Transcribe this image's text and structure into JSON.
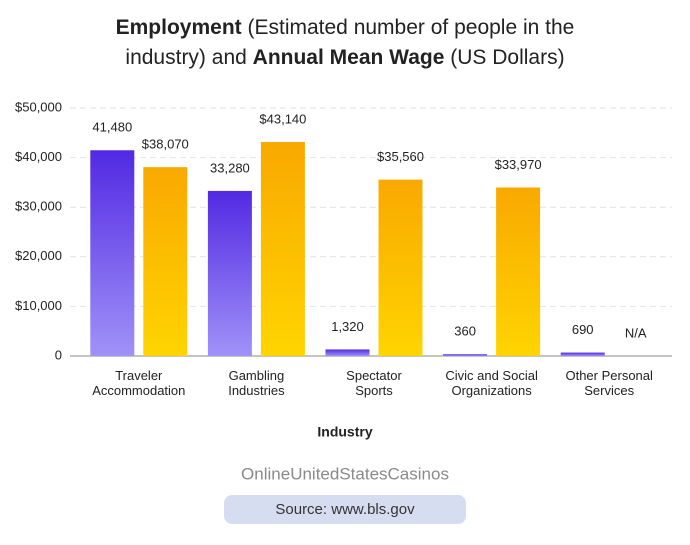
{
  "chart_data": {
    "type": "bar",
    "title": [
      {
        "text": "Employment",
        "bold": true
      },
      {
        "text": "(Estimated number of people in the",
        "bold": false
      },
      {
        "text": "industry) and",
        "bold": false
      },
      {
        "text": "Annual Mean Wage",
        "bold": true
      },
      {
        "text": "(US Dollars)",
        "bold": false
      }
    ],
    "title_lines": [
      [
        0,
        1
      ],
      [
        2,
        3,
        4
      ]
    ],
    "xlabel": "Industry",
    "categories": [
      [
        "Traveler",
        "Accommodation"
      ],
      [
        "Gambling",
        "Industries"
      ],
      [
        "Spectator",
        "Sports"
      ],
      [
        "Civic and Social",
        "Organizations"
      ],
      [
        "Other Personal",
        "Services"
      ]
    ],
    "series": [
      {
        "color": [
          "#5229e3",
          "#a092f8"
        ],
        "values": [
          41480,
          33280,
          1320,
          360,
          690
        ],
        "value_labels": [
          "41,480",
          "33,280",
          "1,320",
          "360",
          "690"
        ]
      },
      {
        "color": [
          "#f9a900",
          "#ffd400"
        ],
        "values": [
          38070,
          43140,
          35560,
          33970,
          null
        ],
        "value_labels": [
          "$38,070",
          "$43,140",
          "$35,560",
          "$33,970",
          "N/A"
        ]
      }
    ],
    "ylim": [
      0,
      50000
    ],
    "yticks": [
      0,
      {
        "value": 10000,
        "label": "$10,000"
      },
      {
        "value": 20000,
        "label": "$20,000"
      },
      {
        "value": 30000,
        "label": "$30,000"
      },
      {
        "value": 40000,
        "label": "$40,000"
      },
      {
        "value": 50000,
        "label": "$50,000"
      }
    ],
    "grid": true
  },
  "footer": {
    "brand": "OnlineUnitedStatesCasinos",
    "source": "Source: www.bls.gov"
  }
}
